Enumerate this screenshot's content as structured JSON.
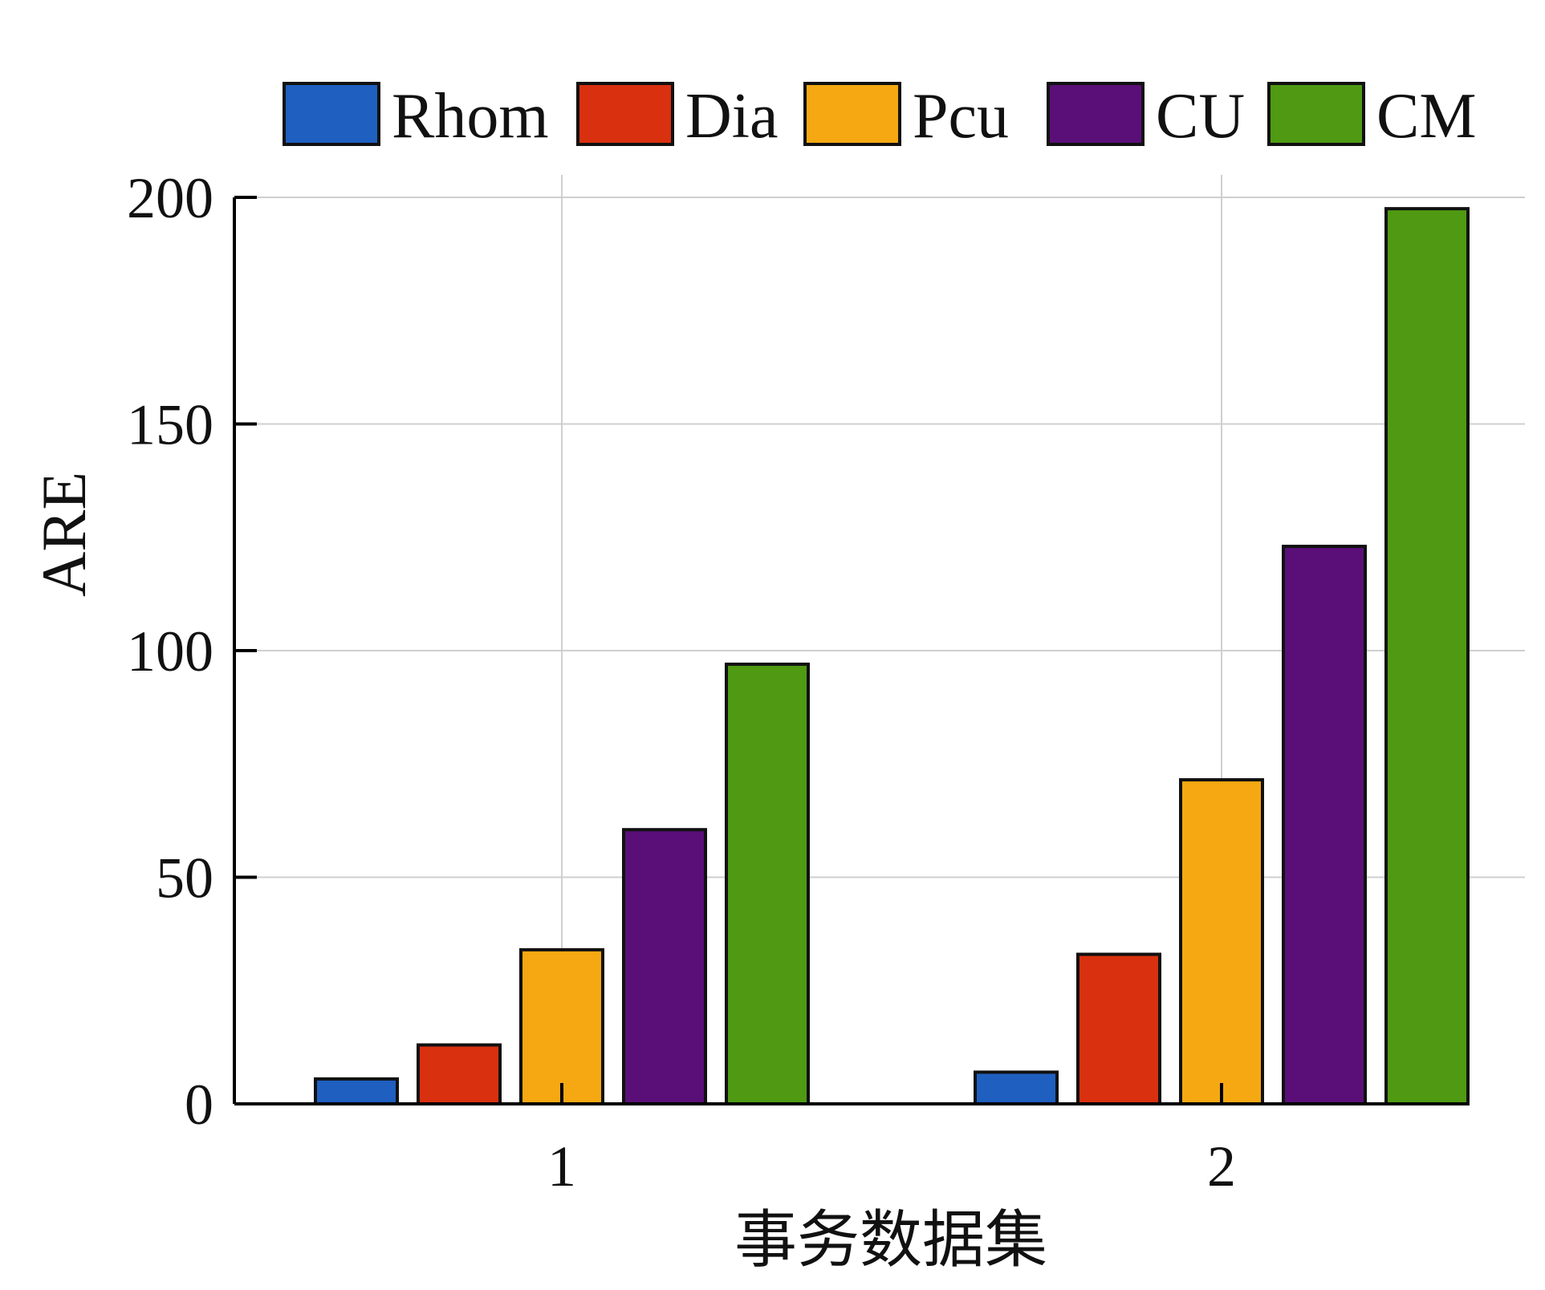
{
  "chart_data": {
    "type": "bar",
    "title": "",
    "xlabel": "事务数据集",
    "ylabel": "ARE",
    "categories": [
      "1",
      "2"
    ],
    "ylim": [
      0,
      200
    ],
    "yticks": [
      "0",
      "50",
      "100",
      "150",
      "200"
    ],
    "grid": true,
    "legend_position": "top",
    "series": [
      {
        "name": "Rhom",
        "color": "#1f5fbf",
        "values": [
          5.5,
          7
        ]
      },
      {
        "name": "Dia",
        "color": "#d9300f",
        "values": [
          13,
          33
        ]
      },
      {
        "name": "Pcu",
        "color": "#f5a811",
        "values": [
          34,
          71.5
        ]
      },
      {
        "name": "CU",
        "color": "#5a0f78",
        "values": [
          60.5,
          123
        ]
      },
      {
        "name": "CM",
        "color": "#4f9a12",
        "values": [
          97,
          197.5
        ]
      }
    ]
  }
}
